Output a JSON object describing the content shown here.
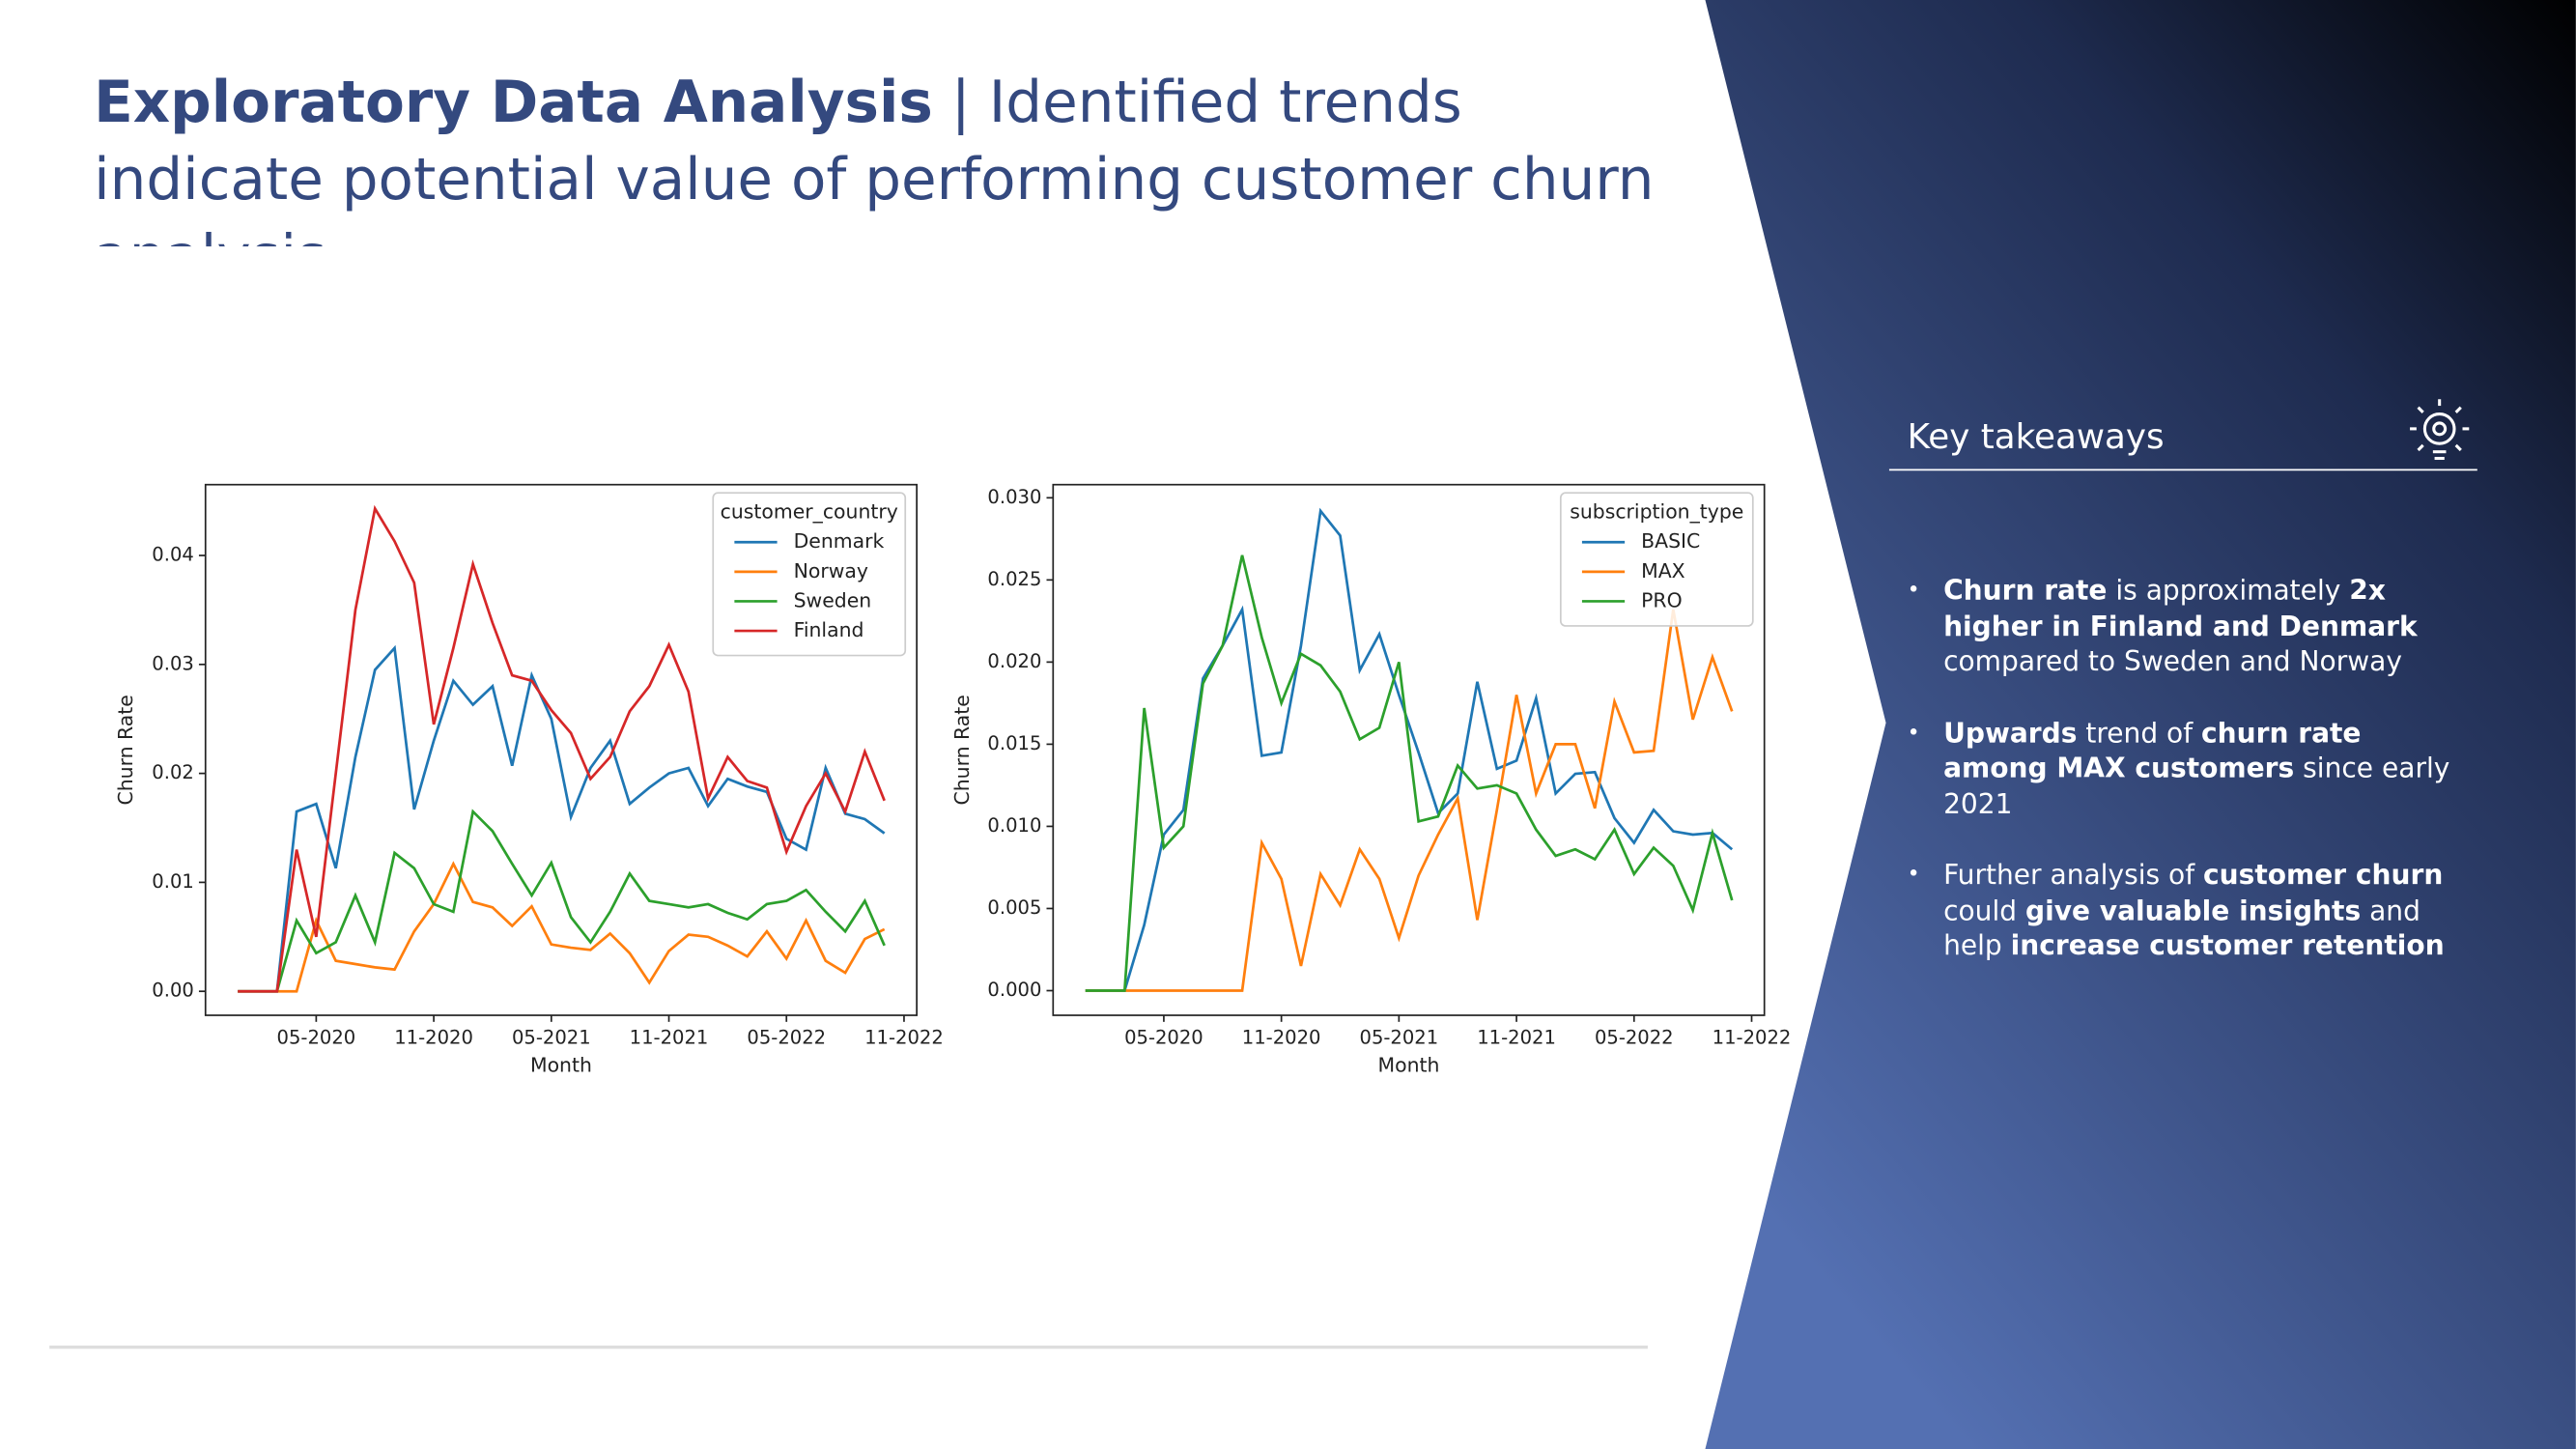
{
  "slide": {
    "title_bold": "Exploratory Data Analysis",
    "title_rest": " | Identified trends indicate potential value of performing customer churn analysis",
    "takeaways_title": "Key takeaways",
    "bullets": [
      [
        {
          "text": "Churn rate",
          "bold": true
        },
        {
          "text": " is approximately ",
          "bold": false
        },
        {
          "text": "2x higher in Finland and Denmark",
          "bold": true
        },
        {
          "text": " compared to Sweden and Norway",
          "bold": false
        }
      ],
      [
        {
          "text": "Upwards",
          "bold": true
        },
        {
          "text": " trend of ",
          "bold": false
        },
        {
          "text": "churn rate among MAX customers",
          "bold": true
        },
        {
          "text": " since early 2021",
          "bold": false
        }
      ],
      [
        {
          "text": "Further analysis of ",
          "bold": false
        },
        {
          "text": "customer churn",
          "bold": true
        },
        {
          "text": " could ",
          "bold": false
        },
        {
          "text": "give valuable insights",
          "bold": true
        },
        {
          "text": " and help ",
          "bold": false
        },
        {
          "text": "increase customer retention",
          "bold": true
        }
      ]
    ]
  },
  "chart_data": [
    {
      "type": "line",
      "xlabel": "Month",
      "ylabel": "Churn Rate",
      "legend_title": "customer_country",
      "legend": "upper right",
      "x": [
        "01-2020",
        "02-2020",
        "03-2020",
        "04-2020",
        "05-2020",
        "06-2020",
        "07-2020",
        "08-2020",
        "09-2020",
        "10-2020",
        "11-2020",
        "12-2020",
        "01-2021",
        "02-2021",
        "03-2021",
        "04-2021",
        "05-2021",
        "06-2021",
        "07-2021",
        "08-2021",
        "09-2021",
        "10-2021",
        "11-2021",
        "12-2021",
        "01-2022",
        "02-2022",
        "03-2022",
        "04-2022",
        "05-2022",
        "06-2022",
        "07-2022",
        "08-2022",
        "09-2022",
        "10-2022"
      ],
      "xticks": [
        "05-2020",
        "11-2020",
        "05-2021",
        "11-2021",
        "05-2022",
        "11-2022"
      ],
      "ylim": [
        -0.0022,
        0.0465
      ],
      "yticks": [
        {
          "value": 0,
          "label": "0.00"
        },
        {
          "value": 0.01,
          "label": "0.01"
        },
        {
          "value": 0.02,
          "label": "0.02"
        },
        {
          "value": 0.03,
          "label": "0.03"
        },
        {
          "value": 0.04,
          "label": "0.04"
        }
      ],
      "series": [
        {
          "name": "Denmark",
          "color": "#1f77b4",
          "values": [
            0,
            0,
            0,
            0.0165,
            0.0172,
            0.0113,
            0.0215,
            0.0295,
            0.0315,
            0.0167,
            0.023,
            0.0285,
            0.0263,
            0.028,
            0.0207,
            0.029,
            0.025,
            0.016,
            0.0205,
            0.023,
            0.0172,
            0.0187,
            0.02,
            0.0205,
            0.017,
            0.0195,
            0.0188,
            0.0183,
            0.014,
            0.013,
            0.0205,
            0.0163,
            0.0158,
            0.0145
          ]
        },
        {
          "name": "Norway",
          "color": "#ff7f0e",
          "values": [
            0,
            0,
            0,
            0,
            0.0065,
            0.0028,
            0.0025,
            0.0022,
            0.002,
            0.0055,
            0.008,
            0.0117,
            0.0082,
            0.0077,
            0.006,
            0.0078,
            0.0043,
            0.004,
            0.0038,
            0.0053,
            0.0035,
            0.0008,
            0.0037,
            0.0052,
            0.005,
            0.0042,
            0.0032,
            0.0055,
            0.003,
            0.0065,
            0.0028,
            0.0017,
            0.0048,
            0.0057
          ]
        },
        {
          "name": "Sweden",
          "color": "#2ca02c",
          "values": [
            0,
            0,
            0,
            0.0065,
            0.0035,
            0.0045,
            0.0088,
            0.0045,
            0.0127,
            0.0113,
            0.008,
            0.0073,
            0.0165,
            0.0147,
            0.0117,
            0.0088,
            0.0118,
            0.0068,
            0.0045,
            0.0073,
            0.0108,
            0.0083,
            0.008,
            0.0077,
            0.008,
            0.0072,
            0.0066,
            0.008,
            0.0083,
            0.0093,
            0.0073,
            0.0055,
            0.0083,
            0.0042
          ]
        },
        {
          "name": "Finland",
          "color": "#d62728",
          "values": [
            0,
            0,
            0,
            0.013,
            0.005,
            0.02,
            0.035,
            0.0443,
            0.0413,
            0.0375,
            0.0245,
            0.0315,
            0.0392,
            0.0338,
            0.029,
            0.0285,
            0.0258,
            0.0237,
            0.0195,
            0.0215,
            0.0257,
            0.028,
            0.0318,
            0.0275,
            0.0177,
            0.0215,
            0.0193,
            0.0187,
            0.0128,
            0.017,
            0.02,
            0.0165,
            0.022,
            0.0175
          ]
        }
      ]
    },
    {
      "type": "line",
      "xlabel": "Month",
      "ylabel": "Churn Rate",
      "legend_title": "subscription_type",
      "legend": "upper right",
      "x": [
        "01-2020",
        "02-2020",
        "03-2020",
        "04-2020",
        "05-2020",
        "06-2020",
        "07-2020",
        "08-2020",
        "09-2020",
        "10-2020",
        "11-2020",
        "12-2020",
        "01-2021",
        "02-2021",
        "03-2021",
        "04-2021",
        "05-2021",
        "06-2021",
        "07-2021",
        "08-2021",
        "09-2021",
        "10-2021",
        "11-2021",
        "12-2021",
        "01-2022",
        "02-2022",
        "03-2022",
        "04-2022",
        "05-2022",
        "06-2022",
        "07-2022",
        "08-2022",
        "09-2022",
        "10-2022"
      ],
      "xticks": [
        "05-2020",
        "11-2020",
        "05-2021",
        "11-2021",
        "05-2022",
        "11-2022"
      ],
      "ylim": [
        -0.0015,
        0.0308
      ],
      "yticks": [
        {
          "value": 0,
          "label": "0.000"
        },
        {
          "value": 0.005,
          "label": "0.005"
        },
        {
          "value": 0.01,
          "label": "0.010"
        },
        {
          "value": 0.015,
          "label": "0.015"
        },
        {
          "value": 0.02,
          "label": "0.020"
        },
        {
          "value": 0.025,
          "label": "0.025"
        },
        {
          "value": 0.03,
          "label": "0.030"
        }
      ],
      "series": [
        {
          "name": "BASIC",
          "color": "#1f77b4",
          "values": [
            0,
            0,
            0,
            0.004,
            0.0095,
            0.011,
            0.019,
            0.021,
            0.0232,
            0.0143,
            0.0145,
            0.021,
            0.0292,
            0.0277,
            0.0195,
            0.0217,
            0.018,
            0.0145,
            0.0108,
            0.012,
            0.0188,
            0.0135,
            0.014,
            0.0178,
            0.012,
            0.0132,
            0.0133,
            0.0105,
            0.009,
            0.011,
            0.0097,
            0.0095,
            0.0096,
            0.0086
          ]
        },
        {
          "name": "MAX",
          "color": "#ff7f0e",
          "values": [
            0,
            0,
            0,
            0,
            0,
            0,
            0,
            0,
            0,
            0.009,
            0.0068,
            0.0015,
            0.0071,
            0.0052,
            0.0086,
            0.0068,
            0.0032,
            0.007,
            0.0095,
            0.0117,
            0.0043,
            0.011,
            0.018,
            0.012,
            0.015,
            0.015,
            0.0111,
            0.0176,
            0.0145,
            0.0146,
            0.0232,
            0.0165,
            0.0203,
            0.017
          ]
        },
        {
          "name": "PRO",
          "color": "#2ca02c",
          "values": [
            0,
            0,
            0,
            0.0172,
            0.0087,
            0.01,
            0.0187,
            0.021,
            0.0265,
            0.0215,
            0.0175,
            0.0205,
            0.0198,
            0.0182,
            0.0153,
            0.016,
            0.02,
            0.0103,
            0.0106,
            0.0137,
            0.0123,
            0.0125,
            0.012,
            0.0098,
            0.0082,
            0.0086,
            0.008,
            0.0098,
            0.0071,
            0.0087,
            0.0076,
            0.0049,
            0.0096,
            0.0055
          ]
        }
      ]
    }
  ]
}
